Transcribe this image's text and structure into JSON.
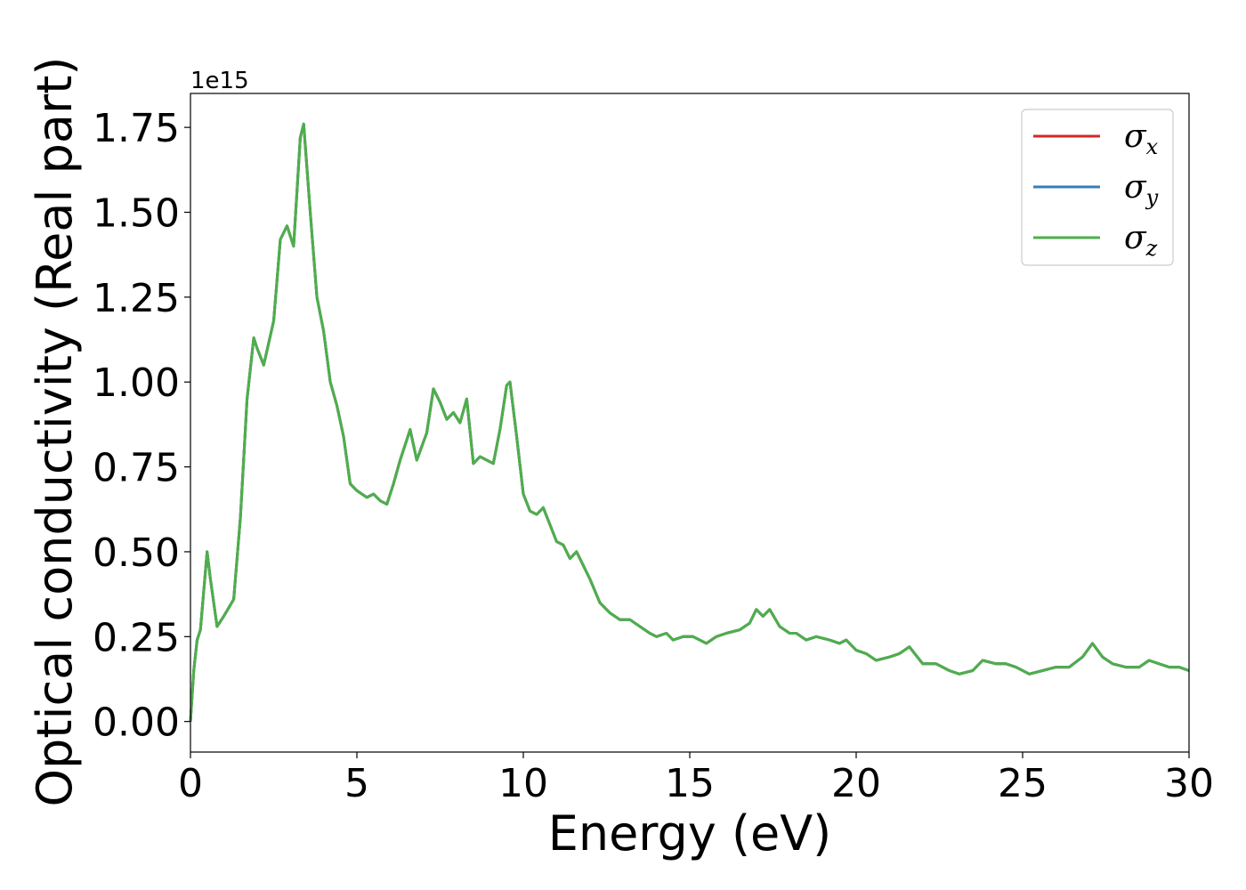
{
  "chart_data": {
    "type": "line",
    "xlabel": "Energy (eV)",
    "ylabel": "Optical conductivity (Real part)",
    "y_offset_label": "1e15",
    "xlim": [
      0,
      30
    ],
    "ylim": [
      -0.09,
      1.85
    ],
    "x_ticks": [
      0,
      5,
      10,
      15,
      20,
      25,
      30
    ],
    "x_tick_labels": [
      "0",
      "5",
      "10",
      "15",
      "20",
      "25",
      "30"
    ],
    "y_ticks": [
      0.0,
      0.25,
      0.5,
      0.75,
      1.0,
      1.25,
      1.5,
      1.75
    ],
    "y_tick_labels": [
      "0.00",
      "0.25",
      "0.50",
      "0.75",
      "1.00",
      "1.25",
      "1.50",
      "1.75"
    ],
    "grid": false,
    "legend_position": "top-right",
    "series": [
      {
        "name": "σx",
        "symbol": "σ",
        "subscript": "x",
        "color": "#d62728",
        "values_same_as": "σz"
      },
      {
        "name": "σy",
        "symbol": "σ",
        "subscript": "y",
        "color": "#377eb8",
        "values_same_as": "σz"
      },
      {
        "name": "σz",
        "symbol": "σ",
        "subscript": "z",
        "color": "#4daf4a"
      }
    ],
    "x": [
      0,
      0.1,
      0.2,
      0.3,
      0.5,
      0.6,
      0.8,
      1.0,
      1.3,
      1.5,
      1.7,
      1.9,
      2.0,
      2.2,
      2.5,
      2.7,
      2.9,
      3.1,
      3.3,
      3.4,
      3.6,
      3.8,
      4.0,
      4.2,
      4.4,
      4.6,
      4.8,
      5.0,
      5.3,
      5.5,
      5.7,
      5.9,
      6.1,
      6.3,
      6.5,
      6.6,
      6.8,
      7.1,
      7.3,
      7.5,
      7.7,
      7.9,
      8.1,
      8.3,
      8.5,
      8.7,
      8.9,
      9.1,
      9.3,
      9.5,
      9.6,
      9.8,
      10.0,
      10.2,
      10.4,
      10.6,
      10.8,
      11.0,
      11.2,
      11.4,
      11.6,
      11.8,
      12.0,
      12.3,
      12.6,
      12.9,
      13.2,
      13.5,
      13.8,
      14.0,
      14.3,
      14.5,
      14.8,
      15.1,
      15.5,
      15.8,
      16.1,
      16.5,
      16.8,
      17.0,
      17.2,
      17.4,
      17.7,
      18.0,
      18.2,
      18.5,
      18.8,
      19.2,
      19.5,
      19.7,
      20.0,
      20.3,
      20.6,
      21.0,
      21.3,
      21.6,
      22.0,
      22.4,
      22.8,
      23.1,
      23.5,
      23.8,
      24.2,
      24.5,
      24.8,
      25.2,
      25.6,
      26.0,
      26.4,
      26.8,
      27.1,
      27.4,
      27.7,
      28.1,
      28.5,
      28.8,
      29.1,
      29.4,
      29.7,
      30.0
    ],
    "values": [
      0.0,
      0.15,
      0.24,
      0.27,
      0.5,
      0.42,
      0.28,
      0.31,
      0.36,
      0.6,
      0.95,
      1.13,
      1.1,
      1.05,
      1.18,
      1.42,
      1.46,
      1.4,
      1.72,
      1.76,
      1.5,
      1.25,
      1.15,
      1.0,
      0.93,
      0.84,
      0.7,
      0.68,
      0.66,
      0.67,
      0.65,
      0.64,
      0.7,
      0.77,
      0.83,
      0.86,
      0.77,
      0.85,
      0.98,
      0.94,
      0.89,
      0.91,
      0.88,
      0.95,
      0.76,
      0.78,
      0.77,
      0.76,
      0.86,
      0.99,
      1.0,
      0.84,
      0.67,
      0.62,
      0.61,
      0.63,
      0.58,
      0.53,
      0.52,
      0.48,
      0.5,
      0.46,
      0.42,
      0.35,
      0.32,
      0.3,
      0.3,
      0.28,
      0.26,
      0.25,
      0.26,
      0.24,
      0.25,
      0.25,
      0.23,
      0.25,
      0.26,
      0.27,
      0.29,
      0.33,
      0.31,
      0.33,
      0.28,
      0.26,
      0.26,
      0.24,
      0.25,
      0.24,
      0.23,
      0.24,
      0.21,
      0.2,
      0.18,
      0.19,
      0.2,
      0.22,
      0.17,
      0.17,
      0.15,
      0.14,
      0.15,
      0.18,
      0.17,
      0.17,
      0.16,
      0.14,
      0.15,
      0.16,
      0.16,
      0.19,
      0.23,
      0.19,
      0.17,
      0.16,
      0.16,
      0.18,
      0.17,
      0.16,
      0.16,
      0.15
    ]
  }
}
